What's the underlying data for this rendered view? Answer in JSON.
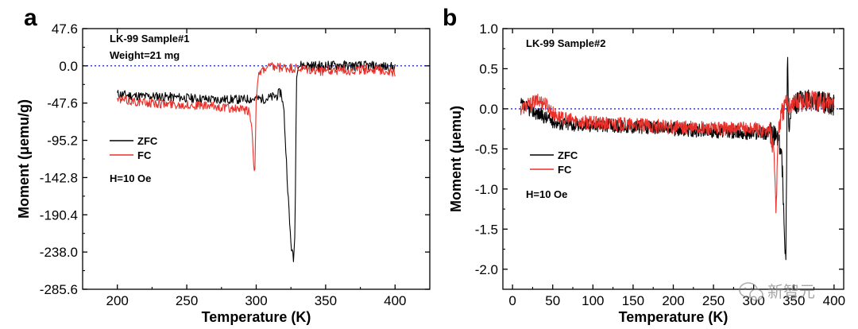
{
  "chart_data": [
    {
      "type": "line",
      "panel_label": "a",
      "title": "",
      "xlabel": "Temperature (K)",
      "ylabel": "Moment (μemu/g)",
      "xlim": [
        175,
        425
      ],
      "ylim": [
        -285.6,
        47.6
      ],
      "xticks": [
        "200",
        "250",
        "300",
        "350",
        "400"
      ],
      "xtick_values": [
        200,
        250,
        300,
        350,
        400
      ],
      "yticks": [
        "47.6",
        "0.0",
        "-47.6",
        "-95.2",
        "-142.8",
        "-190.4",
        "-238.0",
        "-285.6"
      ],
      "ytick_values": [
        47.6,
        0.0,
        -47.6,
        -95.2,
        -142.8,
        -190.4,
        -238.0,
        -285.6
      ],
      "reference_line": {
        "y": 0.0,
        "style": "dotted",
        "color": "#1f2fd6"
      },
      "annotations": [
        "LK-99 Sample#1",
        "Weight=21 mg",
        "H=10 Oe"
      ],
      "legend_position": "middle-left",
      "series": [
        {
          "name": "ZFC",
          "color": "#000000",
          "x": [
            200,
            210,
            220,
            230,
            240,
            250,
            260,
            270,
            280,
            290,
            300,
            305,
            310,
            315,
            318,
            320,
            322,
            324,
            325,
            326,
            327,
            328,
            329,
            330,
            335,
            340,
            350,
            360,
            370,
            380,
            390,
            400
          ],
          "y": [
            -36,
            -38,
            -39,
            -39,
            -40,
            -41,
            -42,
            -43,
            -43,
            -43,
            -42,
            -42,
            -41,
            -38,
            -33,
            -60,
            -130,
            -200,
            -225,
            -240,
            -250,
            -200,
            -10,
            0,
            1,
            0,
            0,
            1,
            0,
            0,
            -1,
            -2
          ]
        },
        {
          "name": "FC",
          "color": "#e8302a",
          "x": [
            200,
            210,
            220,
            230,
            240,
            250,
            260,
            270,
            280,
            290,
            295,
            297,
            298,
            299,
            300,
            301,
            302,
            305,
            310,
            320,
            330,
            340,
            350,
            360,
            370,
            380,
            390,
            400
          ],
          "y": [
            -43,
            -45,
            -47,
            -48,
            -49,
            -50,
            -51,
            -52,
            -54,
            -56,
            -58,
            -80,
            -120,
            -135,
            -40,
            -25,
            -12,
            -5,
            -2,
            -3,
            -4,
            -6,
            -6,
            -5,
            -6,
            -4,
            -5,
            -8
          ]
        }
      ]
    },
    {
      "type": "line",
      "panel_label": "b",
      "title": "",
      "xlabel": "Temperature (K)",
      "ylabel": "Moment (μemu)",
      "xlim": [
        -12,
        412
      ],
      "ylim": [
        -2.25,
        1.0
      ],
      "xticks": [
        "0",
        "50",
        "100",
        "150",
        "200",
        "250",
        "300",
        "350",
        "400"
      ],
      "xtick_values": [
        0,
        50,
        100,
        150,
        200,
        250,
        300,
        350,
        400
      ],
      "yticks": [
        "1.0",
        "0.5",
        "0.0",
        "-0.5",
        "-1.0",
        "-1.5",
        "-2.0"
      ],
      "ytick_values": [
        1.0,
        0.5,
        0.0,
        -0.5,
        -1.0,
        -1.5,
        -2.0
      ],
      "reference_line": {
        "y": 0.0,
        "style": "dotted",
        "color": "#1f2fd6"
      },
      "annotations": [
        "LK-99 Sample#2",
        "H=10 Oe"
      ],
      "legend_position": "middle-left",
      "series": [
        {
          "name": "ZFC",
          "color": "#000000",
          "x": [
            10,
            20,
            30,
            40,
            50,
            60,
            80,
            100,
            150,
            200,
            250,
            300,
            320,
            330,
            335,
            338,
            340,
            342,
            344,
            346,
            350,
            360,
            380,
            400
          ],
          "y": [
            0.05,
            0.0,
            -0.05,
            -0.1,
            -0.15,
            -0.18,
            -0.2,
            -0.2,
            -0.22,
            -0.25,
            -0.28,
            -0.3,
            -0.3,
            -0.35,
            -0.6,
            -1.4,
            -1.95,
            0.7,
            -0.3,
            0.0,
            0.05,
            0.1,
            0.1,
            0.05
          ]
        },
        {
          "name": "FC",
          "color": "#e8302a",
          "x": [
            10,
            20,
            30,
            40,
            50,
            60,
            80,
            100,
            150,
            200,
            250,
            300,
            320,
            325,
            328,
            330,
            332,
            335,
            340,
            350,
            360,
            380,
            400
          ],
          "y": [
            0.0,
            0.05,
            0.1,
            0.08,
            -0.05,
            -0.12,
            -0.15,
            -0.18,
            -0.2,
            -0.23,
            -0.25,
            -0.25,
            -0.28,
            -0.5,
            -1.25,
            -0.4,
            -0.2,
            -0.05,
            0.05,
            0.08,
            0.1,
            0.1,
            0.05
          ]
        }
      ]
    }
  ],
  "watermark": {
    "label": "新智元",
    "icon": "wechat-bubble-icon"
  }
}
